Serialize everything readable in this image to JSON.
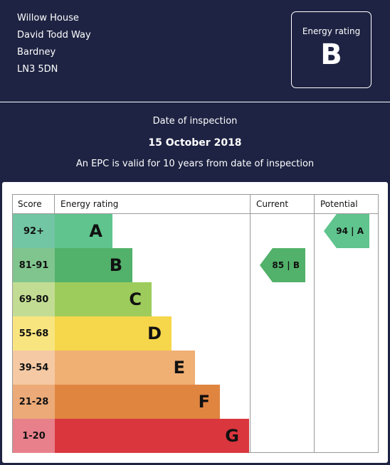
{
  "address": {
    "line1": "Willow House",
    "line2": "David Todd Way",
    "line3": "Bardney",
    "postcode": "LN3 5DN"
  },
  "summary": {
    "energy_rating_label": "Energy rating",
    "energy_rating": "B"
  },
  "inspection": {
    "label": "Date of inspection",
    "date": "15 October 2018",
    "validity_note": "An EPC is valid for 10 years from date of inspection"
  },
  "chart": {
    "headers": {
      "score": "Score",
      "energy_rating": "Energy rating",
      "current": "Current",
      "potential": "Potential"
    },
    "bands": [
      {
        "score": "92+",
        "letter": "A",
        "color": "#2aa06a",
        "score_color": "#72c6a4",
        "bar_color": "#5fc48d"
      },
      {
        "score": "81-91",
        "letter": "B",
        "color": "#3aa35c",
        "score_color": "#80c58e",
        "bar_color": "#52b16a"
      },
      {
        "score": "69-80",
        "letter": "C",
        "color": "#8cc04c",
        "score_color": "#c2dd93",
        "bar_color": "#9dcc5c"
      },
      {
        "score": "55-68",
        "letter": "D",
        "color": "#f5cc2c",
        "score_color": "#f9e57f",
        "bar_color": "#f6d64a"
      },
      {
        "score": "39-54",
        "letter": "E",
        "color": "#f0a35f",
        "score_color": "#f5c9a3",
        "bar_color": "#f0af73"
      },
      {
        "score": "21-28",
        "letter": "F",
        "color": "#e07b34",
        "score_color": "#ebaa78",
        "bar_color": "#e08540"
      },
      {
        "score": "1-20",
        "letter": "G",
        "color": "#d8313e",
        "score_color": "#e7808b",
        "bar_color": "#d9363e"
      }
    ],
    "current": {
      "label": "85 | B",
      "score": 85,
      "band": "B",
      "color": "#52b16a"
    },
    "potential": {
      "label": "94 | A",
      "score": 94,
      "band": "A",
      "color": "#5fc48d"
    }
  }
}
